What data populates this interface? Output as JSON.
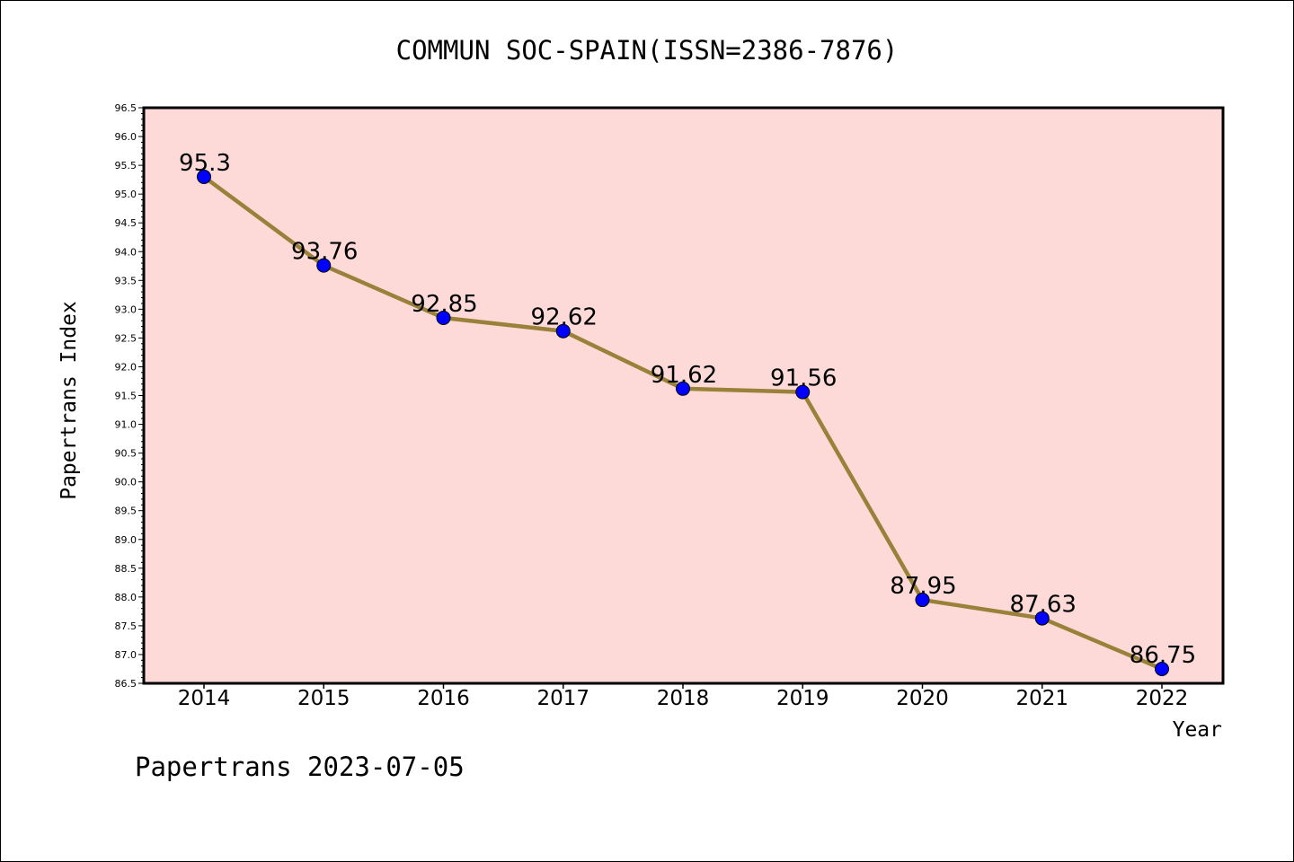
{
  "chart_data": {
    "type": "line",
    "title": "COMMUN SOC-SPAIN(ISSN=2386-7876)",
    "xlabel": "Year",
    "ylabel": "Papertrans Index",
    "categories": [
      "2014",
      "2015",
      "2016",
      "2017",
      "2018",
      "2019",
      "2020",
      "2021",
      "2022"
    ],
    "values": [
      95.3,
      93.76,
      92.85,
      92.62,
      91.62,
      91.56,
      87.95,
      87.63,
      86.75
    ],
    "data_labels": [
      "95.3",
      "93.76",
      "92.85",
      "92.62",
      "91.62",
      "91.56",
      "87.95",
      "87.63",
      "86.75"
    ],
    "ylim": [
      86.5,
      96.5
    ],
    "yticks": [
      "86.5",
      "87.0",
      "87.5",
      "88.0",
      "88.5",
      "89.0",
      "89.5",
      "90.0",
      "90.5",
      "91.0",
      "91.5",
      "92.0",
      "92.5",
      "93.0",
      "93.5",
      "94.0",
      "94.5",
      "95.0",
      "95.5",
      "96.0",
      "96.5"
    ],
    "grid": false,
    "colors": {
      "plot_background": "#fddad8",
      "line": "#9a8139",
      "marker": "#0000ff"
    }
  },
  "footer": "Papertrans 2023-07-05"
}
